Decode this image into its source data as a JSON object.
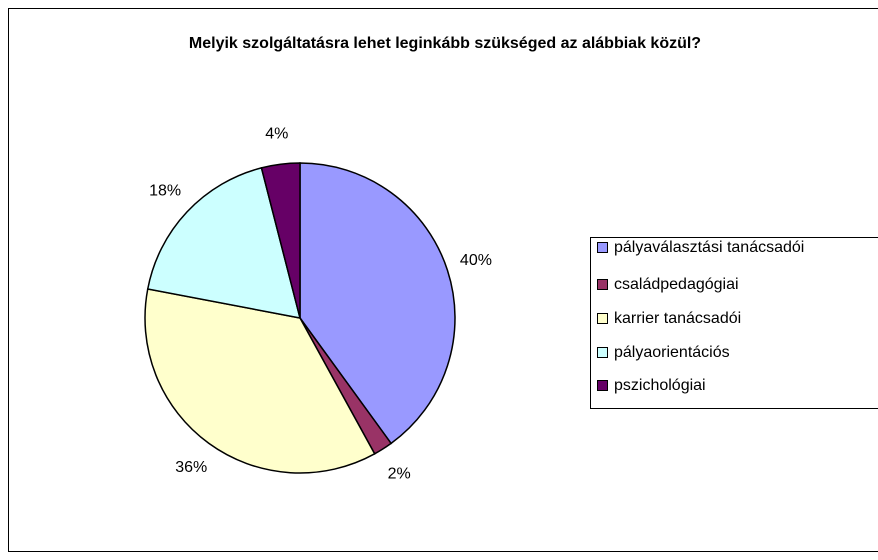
{
  "chart_data": {
    "type": "pie",
    "title": "Melyik szolgáltatásra lehet leginkább szükséged az alábbiak közül?",
    "categories": [
      "pályaválasztási tanácsadói",
      "családpedagógiai",
      "karrier tanácsadói",
      "pályaorientációs",
      "pszichológiai"
    ],
    "values": [
      40,
      2,
      36,
      18,
      4
    ],
    "value_labels": [
      "40%",
      "2%",
      "36%",
      "18%",
      "4%"
    ],
    "colors": [
      "#9999ff",
      "#993366",
      "#ffffcc",
      "#ccffff",
      "#660066"
    ],
    "legend": "right"
  }
}
